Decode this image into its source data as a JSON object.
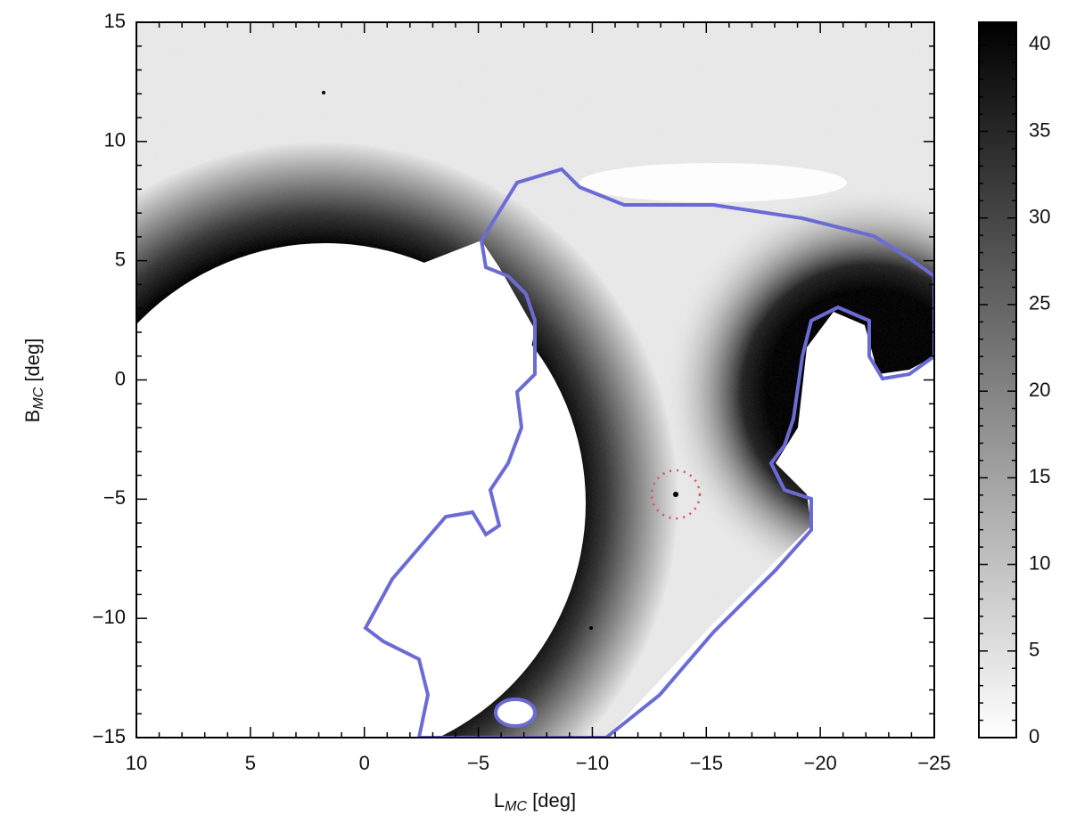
{
  "chart_data": {
    "type": "heatmap",
    "xlabel": [
      "L",
      "MC",
      " [deg]"
    ],
    "ylabel": [
      "B",
      "MC",
      " [deg]"
    ],
    "xlim": [
      10,
      -25
    ],
    "ylim": [
      -15,
      15
    ],
    "xticks": [
      10,
      5,
      0,
      {
        "value": -5,
        "label": "−5"
      },
      {
        "value": -10,
        "label": "−10"
      },
      {
        "value": -15,
        "label": "−15"
      },
      {
        "value": -20,
        "label": "−20"
      },
      {
        "value": -25,
        "label": "−25"
      }
    ],
    "yticks": [
      {
        "value": -15,
        "label": "−15"
      },
      {
        "value": -10,
        "label": "−10"
      },
      {
        "value": -5,
        "label": "−5"
      },
      0,
      5,
      10,
      15
    ],
    "colorbar": {
      "lim": [
        0,
        41.3
      ],
      "ticks": [
        0,
        5,
        10,
        15,
        20,
        25,
        30,
        35,
        40
      ]
    }
  }
}
